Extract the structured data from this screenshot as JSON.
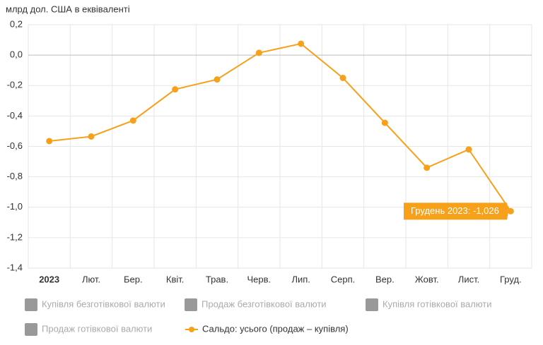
{
  "chart_data": {
    "type": "line",
    "y_axis_label": "млрд дол. США в еквіваленті",
    "categories": [
      "2023",
      "Лют.",
      "Бер.",
      "Квіт.",
      "Трав.",
      "Черв.",
      "Лип.",
      "Серп.",
      "Вер.",
      "Жовт.",
      "Лист.",
      "Груд."
    ],
    "series": [
      {
        "name": "Сальдо: усього (продаж – купівля)",
        "color": "#f7a11a",
        "values": [
          -0.565,
          -0.535,
          -0.43,
          -0.225,
          -0.16,
          0.015,
          0.075,
          -0.15,
          -0.445,
          -0.74,
          -0.62,
          -1.026
        ]
      }
    ],
    "hidden_series": [
      {
        "name": "Купівля безготівкової валюти",
        "color": "#999999"
      },
      {
        "name": "Продаж безготівкової валюти",
        "color": "#999999"
      },
      {
        "name": "Купівля готівкової валюти",
        "color": "#999999"
      },
      {
        "name": "Продаж готівкової валюти",
        "color": "#999999"
      }
    ],
    "tooltip": {
      "text": "Грудень 2023: -1,026",
      "series": 0,
      "index": 11
    },
    "ylim": [
      -1.4,
      0.2
    ],
    "yticks": [
      {
        "value": 0.2,
        "label": "0,2"
      },
      {
        "value": 0,
        "label": "0,0"
      },
      {
        "value": -0.2,
        "label": "-0,2"
      },
      {
        "value": -0.4,
        "label": "-0,4"
      },
      {
        "value": -0.6,
        "label": "-0,6"
      },
      {
        "value": -0.8,
        "label": "-0,8"
      },
      {
        "value": -1.0,
        "label": "-1,0"
      },
      {
        "value": -1.2,
        "label": "-1,2"
      },
      {
        "value": -1.4,
        "label": "-1,4"
      }
    ],
    "grid": true
  }
}
